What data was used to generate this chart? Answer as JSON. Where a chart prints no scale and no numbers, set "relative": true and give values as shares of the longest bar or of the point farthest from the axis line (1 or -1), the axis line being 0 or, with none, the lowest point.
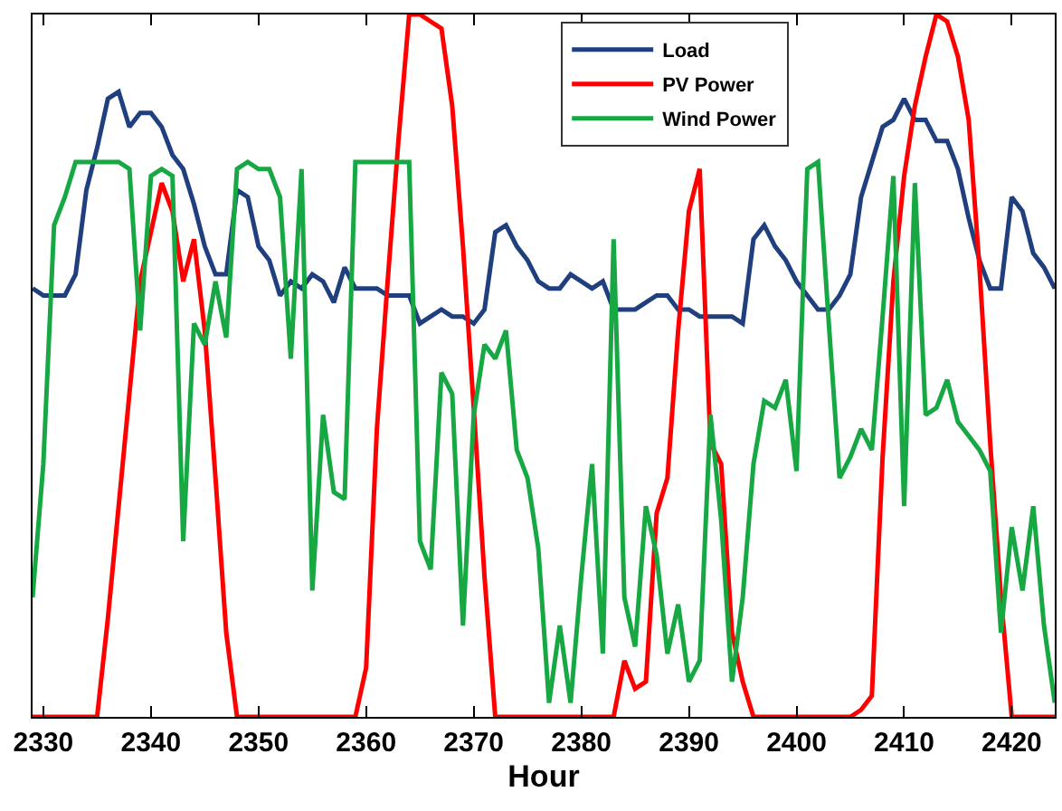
{
  "chart_data": {
    "type": "line",
    "xlabel": "Hour",
    "relative": true,
    "x": [
      2329,
      2330,
      2331,
      2332,
      2333,
      2334,
      2335,
      2336,
      2337,
      2338,
      2339,
      2340,
      2341,
      2342,
      2343,
      2344,
      2345,
      2346,
      2347,
      2348,
      2349,
      2350,
      2351,
      2352,
      2353,
      2354,
      2355,
      2356,
      2357,
      2358,
      2359,
      2360,
      2361,
      2362,
      2363,
      2364,
      2365,
      2366,
      2367,
      2368,
      2369,
      2370,
      2371,
      2372,
      2373,
      2374,
      2375,
      2376,
      2377,
      2378,
      2379,
      2380,
      2381,
      2382,
      2383,
      2384,
      2385,
      2386,
      2387,
      2388,
      2389,
      2390,
      2391,
      2392,
      2393,
      2394,
      2395,
      2396,
      2397,
      2398,
      2399,
      2400,
      2401,
      2402,
      2403,
      2404,
      2405,
      2406,
      2407,
      2408,
      2409,
      2410,
      2411,
      2412,
      2413,
      2414,
      2415,
      2416,
      2417,
      2418,
      2419,
      2420,
      2421,
      2422,
      2423,
      2424
    ],
    "xlim": [
      2329,
      2424
    ],
    "xticks": [
      2330,
      2340,
      2350,
      2360,
      2370,
      2380,
      2390,
      2400,
      2410,
      2420
    ],
    "legend": "top right",
    "marker": "none",
    "line_style": "solid",
    "series": [
      {
        "name": "Load",
        "color": "#1f3f7f",
        "values": [
          0.61,
          0.6,
          0.6,
          0.6,
          0.63,
          0.75,
          0.81,
          0.88,
          0.89,
          0.84,
          0.86,
          0.86,
          0.84,
          0.8,
          0.78,
          0.73,
          0.67,
          0.63,
          0.63,
          0.75,
          0.74,
          0.67,
          0.65,
          0.6,
          0.62,
          0.61,
          0.63,
          0.62,
          0.59,
          0.64,
          0.61,
          0.61,
          0.61,
          0.6,
          0.6,
          0.6,
          0.56,
          0.57,
          0.58,
          0.57,
          0.57,
          0.56,
          0.58,
          0.69,
          0.7,
          0.67,
          0.65,
          0.62,
          0.61,
          0.61,
          0.63,
          0.62,
          0.61,
          0.62,
          0.58,
          0.58,
          0.58,
          0.59,
          0.6,
          0.6,
          0.58,
          0.58,
          0.57,
          0.57,
          0.57,
          0.57,
          0.56,
          0.68,
          0.7,
          0.67,
          0.65,
          0.62,
          0.6,
          0.58,
          0.58,
          0.6,
          0.63,
          0.74,
          0.79,
          0.84,
          0.85,
          0.88,
          0.85,
          0.85,
          0.82,
          0.82,
          0.78,
          0.71,
          0.65,
          0.61,
          0.61,
          0.74,
          0.72,
          0.66,
          0.64,
          0.61
        ]
      },
      {
        "name": "PV Power",
        "color": "#ff0000",
        "values": [
          0,
          0,
          0,
          0,
          0,
          0,
          0,
          0.14,
          0.3,
          0.46,
          0.62,
          0.69,
          0.76,
          0.72,
          0.62,
          0.68,
          0.55,
          0.34,
          0.12,
          0,
          0,
          0,
          0,
          0,
          0,
          0,
          0,
          0,
          0,
          0,
          0,
          0.07,
          0.41,
          0.62,
          0.82,
          1.0,
          1.0,
          0.99,
          0.98,
          0.87,
          0.67,
          0.44,
          0.2,
          0,
          0,
          0,
          0,
          0,
          0,
          0,
          0,
          0,
          0,
          0,
          0,
          0.08,
          0.04,
          0.05,
          0.29,
          0.34,
          0.55,
          0.72,
          0.78,
          0.39,
          0.36,
          0.12,
          0.05,
          0,
          0,
          0,
          0,
          0,
          0,
          0,
          0,
          0,
          0,
          0.01,
          0.03,
          0.37,
          0.62,
          0.77,
          0.87,
          0.94,
          1.0,
          0.99,
          0.94,
          0.85,
          0.64,
          0.39,
          0.17,
          0,
          0,
          0,
          0,
          0
        ]
      },
      {
        "name": "Wind Power",
        "color": "#17a844",
        "values": [
          0.17,
          0.36,
          0.7,
          0.74,
          0.79,
          0.79,
          0.79,
          0.79,
          0.79,
          0.78,
          0.55,
          0.77,
          0.78,
          0.77,
          0.25,
          0.56,
          0.53,
          0.62,
          0.54,
          0.78,
          0.79,
          0.78,
          0.78,
          0.74,
          0.51,
          0.78,
          0.18,
          0.43,
          0.32,
          0.31,
          0.79,
          0.79,
          0.79,
          0.79,
          0.79,
          0.79,
          0.25,
          0.21,
          0.49,
          0.46,
          0.13,
          0.43,
          0.53,
          0.51,
          0.55,
          0.38,
          0.34,
          0.24,
          0.02,
          0.13,
          0.02,
          0.2,
          0.36,
          0.09,
          0.68,
          0.17,
          0.1,
          0.3,
          0.23,
          0.09,
          0.16,
          0.05,
          0.08,
          0.43,
          0.28,
          0.05,
          0.17,
          0.36,
          0.45,
          0.44,
          0.48,
          0.35,
          0.78,
          0.79,
          0.56,
          0.34,
          0.37,
          0.41,
          0.38,
          0.57,
          0.77,
          0.3,
          0.76,
          0.43,
          0.44,
          0.48,
          0.42,
          0.4,
          0.38,
          0.35,
          0.12,
          0.27,
          0.18,
          0.3,
          0.13,
          0.02
        ]
      }
    ]
  }
}
